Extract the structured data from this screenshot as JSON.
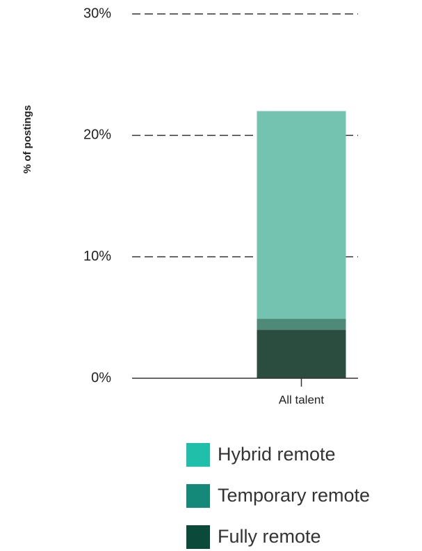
{
  "chart_data": {
    "type": "stacked_bar",
    "y_label": "% of postings",
    "categories": [
      "All talent"
    ],
    "series": [
      {
        "name": "Fully remote",
        "color": "#2b4d40",
        "legend_color": "#0b4a3b",
        "values": [
          4
        ]
      },
      {
        "name": "Temporary remote",
        "color": "#4f8a78",
        "legend_color": "#14897a",
        "values": [
          0.9
        ]
      },
      {
        "name": "Hybrid remote",
        "color": "#74c2b0",
        "legend_color": "#1fbfa9",
        "values": [
          17.1
        ]
      }
    ],
    "ylim": [
      0,
      30
    ],
    "yticks": [
      {
        "value": 0,
        "label": "0%"
      },
      {
        "value": 10,
        "label": "10%"
      },
      {
        "value": 20,
        "label": "20%"
      },
      {
        "value": 30,
        "label": "30%"
      }
    ],
    "grid": true
  }
}
